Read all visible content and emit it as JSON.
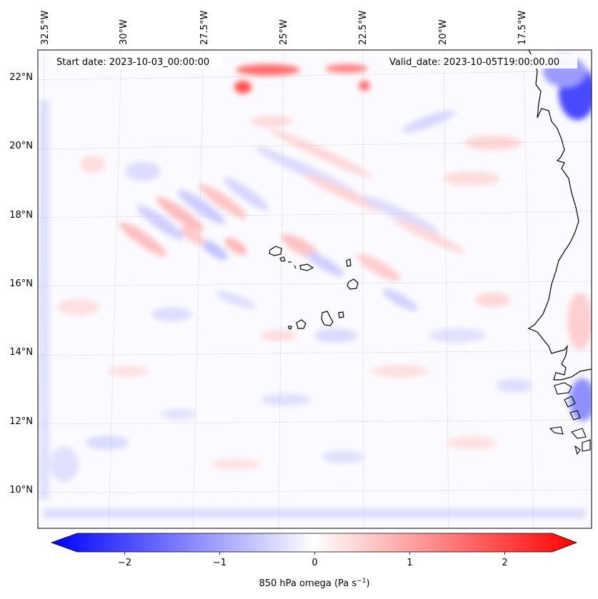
{
  "map": {
    "start_label": "Start date: 2023-10-03_00:00:00",
    "valid_label": "Valid_date: 2023-10-05T19:00:00.00",
    "lon_labels": [
      "32.5°W",
      "30°W",
      "27.5°W",
      "25°W",
      "22.5°W",
      "20°W",
      "17.5°W"
    ],
    "lat_labels": [
      "22°N",
      "20°N",
      "18°N",
      "16°N",
      "14°N",
      "12°N",
      "10°N"
    ],
    "lon_values": [
      -32.5,
      -30,
      -27.5,
      -25,
      -22.5,
      -20,
      -17.5
    ],
    "lat_values": [
      22,
      20,
      18,
      16,
      14,
      12,
      10
    ],
    "extent": {
      "lon_min": -33,
      "lon_max": -16.5,
      "lat_min": 9,
      "lat_max": 22.8
    },
    "field": "850 hPa omega",
    "features": [
      "Cape Verde islands",
      "West African coastline (Mauritania, Senegal, Gambia, Guinea-Bissau)"
    ]
  },
  "colorbar": {
    "label_main": "850 hPa omega (Pa s",
    "label_exp": "−1",
    "label_close": ")",
    "ticks": [
      "−2",
      "−1",
      "0",
      "1",
      "2"
    ],
    "tick_values": [
      -2,
      -1,
      0,
      1,
      2
    ],
    "vmin": -2.5,
    "vmax": 2.5,
    "colors": {
      "low": "#0000ff",
      "mid": "#ffffff",
      "high": "#ff0000"
    }
  }
}
